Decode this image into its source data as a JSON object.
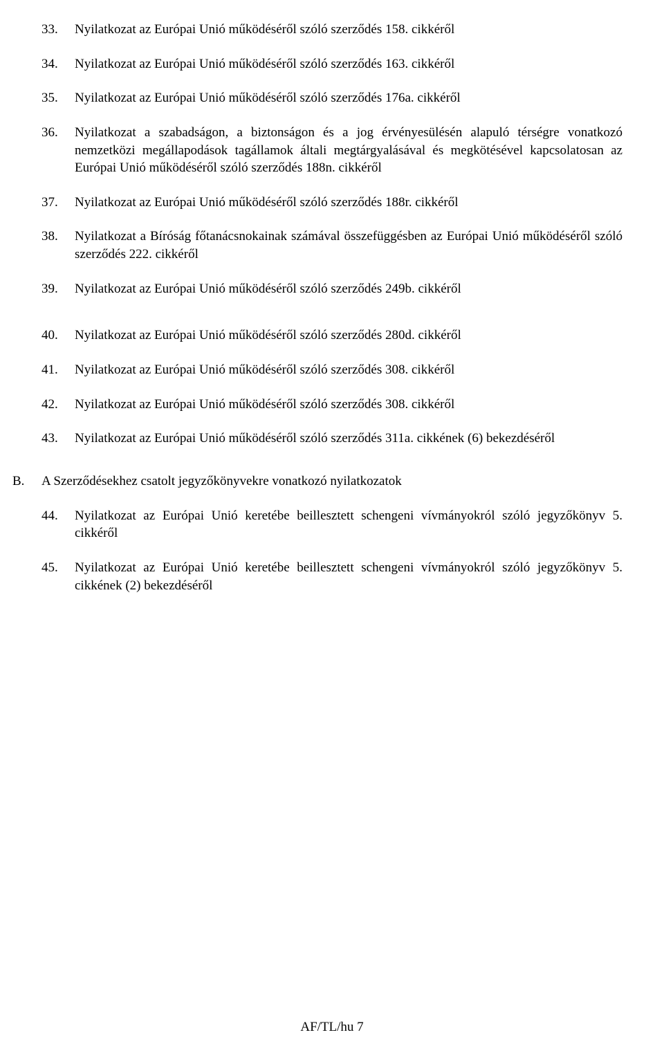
{
  "items1": [
    {
      "num": "33.",
      "text": "Nyilatkozat az Európai Unió működéséről szóló szerződés 158. cikkéről"
    },
    {
      "num": "34.",
      "text": "Nyilatkozat az Európai Unió működéséről szóló szerződés 163. cikkéről"
    },
    {
      "num": "35.",
      "text": "Nyilatkozat az Európai Unió működéséről szóló szerződés 176a. cikkéről"
    },
    {
      "num": "36.",
      "text": "Nyilatkozat a szabadságon, a biztonságon és a jog érvényesülésén alapuló térségre vonatkozó nemzetközi megállapodások tagállamok általi megtárgyalásával és megkötésével kapcsolatosan az Európai Unió működéséről szóló szerződés 188n. cikkéről"
    },
    {
      "num": "37.",
      "text": "Nyilatkozat az Európai Unió működéséről szóló szerződés 188r. cikkéről"
    },
    {
      "num": "38.",
      "text": "Nyilatkozat a Bíróság főtanácsnokainak számával összefüggésben az Európai Unió működéséről szóló szerződés 222. cikkéről"
    },
    {
      "num": "39.",
      "text": "Nyilatkozat az Európai Unió működéséről szóló szerződés 249b. cikkéről"
    }
  ],
  "items2": [
    {
      "num": "40.",
      "text": "Nyilatkozat az Európai Unió működéséről szóló szerződés 280d. cikkéről"
    },
    {
      "num": "41.",
      "text": "Nyilatkozat az Európai Unió működéséről szóló szerződés 308. cikkéről"
    },
    {
      "num": "42.",
      "text": "Nyilatkozat az Európai Unió működéséről szóló szerződés 308. cikkéről"
    },
    {
      "num": "43.",
      "text": "Nyilatkozat az Európai Unió működéséről szóló szerződés 311a. cikkének (6) bekezdéséről"
    }
  ],
  "sectionB": {
    "letter": "B.",
    "title": "A Szerződésekhez csatolt jegyzőkönyvekre vonatkozó nyilatkozatok"
  },
  "items3": [
    {
      "num": "44.",
      "text": "Nyilatkozat az Európai Unió keretébe beillesztett schengeni vívmányokról szóló jegyzőkönyv 5. cikkéről"
    },
    {
      "num": "45.",
      "text": "Nyilatkozat az Európai Unió keretébe beillesztett schengeni vívmányokról szóló jegyzőkönyv 5. cikkének (2) bekezdéséről"
    }
  ],
  "footer": "AF/TL/hu 7"
}
